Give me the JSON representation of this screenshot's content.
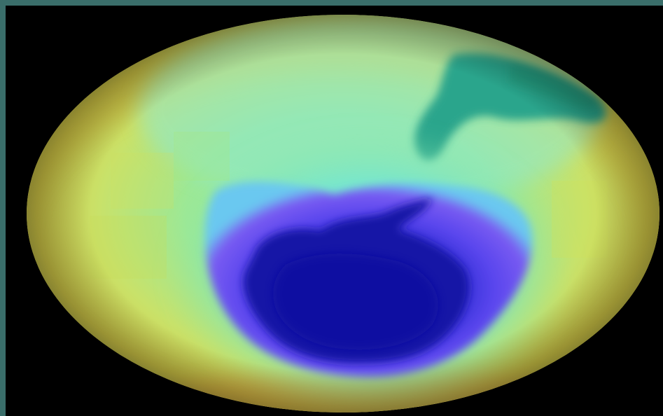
{
  "image": {
    "subject": "ozone-map-globe",
    "colors": {
      "frame": "#3a6e6a",
      "background": "#000000",
      "outer_ring": "#d6d046",
      "mid_ring": "#7fe08a",
      "cyan_band": "#5ad8e6",
      "hole_edge": "#6a4cf0",
      "hole_core": "#1a1ab8",
      "continent": "#2aa58c"
    }
  }
}
